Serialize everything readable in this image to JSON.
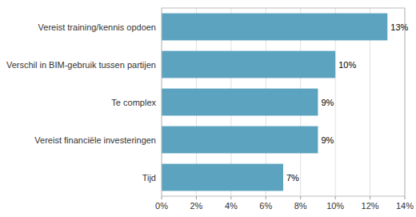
{
  "chart_data": {
    "type": "bar",
    "orientation": "horizontal",
    "categories": [
      "Tijd",
      "Vereist financiële investeringen",
      "Te complex",
      "Verschil in BIM-gebruik tussen partijen",
      "Vereist training/kennis opdoen"
    ],
    "values": [
      7,
      9,
      9,
      10,
      13
    ],
    "value_labels": [
      "7%",
      "9%",
      "9%",
      "10%",
      "13%"
    ],
    "data_labels": true,
    "color": "#5BA3BE",
    "xlim": [
      0,
      14
    ],
    "xticks": [
      {
        "value": 0,
        "label": "0%"
      },
      {
        "value": 2,
        "label": "2%"
      },
      {
        "value": 4,
        "label": "4%"
      },
      {
        "value": 6,
        "label": "6%"
      },
      {
        "value": 8,
        "label": "8%"
      },
      {
        "value": 10,
        "label": "10%"
      },
      {
        "value": 12,
        "label": "12%"
      },
      {
        "value": 14,
        "label": "14%"
      }
    ],
    "grid": true
  }
}
